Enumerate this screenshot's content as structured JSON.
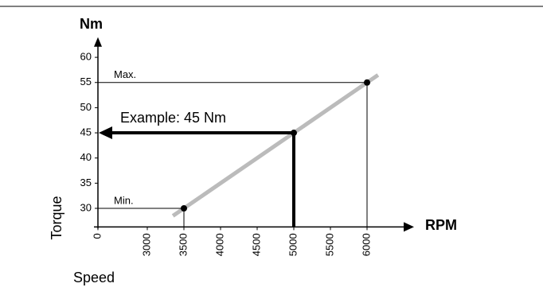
{
  "chart_data": {
    "type": "line",
    "y_unit_label": "Nm",
    "x_unit_label": "RPM",
    "ylabel": "Torque",
    "xlabel": "Speed",
    "x": [
      3350,
      6150
    ],
    "series": [
      {
        "color": "#bbbbbb",
        "values": [
          28.5,
          56.5
        ]
      }
    ],
    "points": [
      {
        "label": "Min.",
        "x": 3500,
        "y": 30
      },
      {
        "label": "Max.",
        "x": 6000,
        "y": 55
      },
      {
        "label": "Example: 45 Nm",
        "x": 5000,
        "y": 45
      }
    ],
    "xlim": [
      0,
      6500
    ],
    "xticks": [
      0,
      3000,
      3500,
      4000,
      4500,
      5000,
      5500,
      6000
    ],
    "ylim": [
      26,
      64
    ],
    "yticks": [
      30,
      35,
      40,
      45,
      50,
      55,
      60
    ]
  }
}
